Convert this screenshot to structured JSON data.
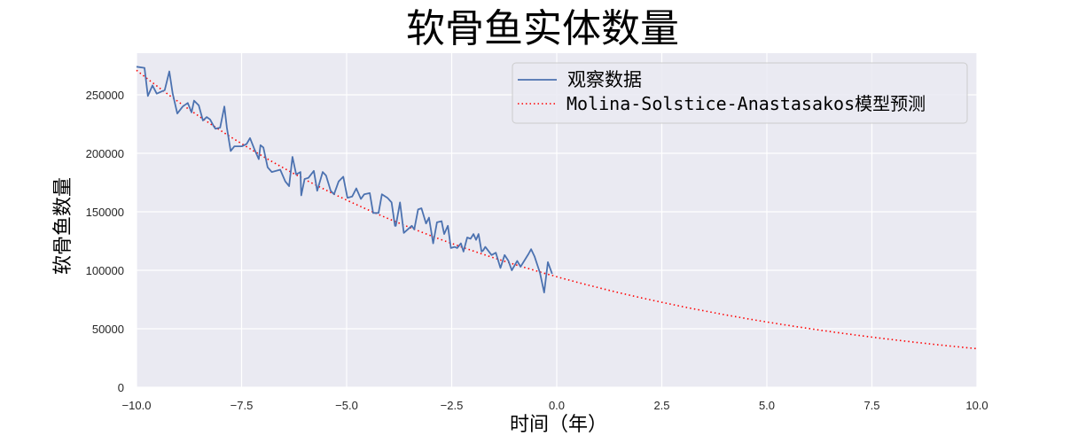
{
  "chart_data": {
    "type": "line",
    "title": "软骨鱼实体数量",
    "xlabel": "时间（年）",
    "ylabel": "软骨鱼数量",
    "xlim": [
      -10.0,
      10.0
    ],
    "ylim": [
      0,
      285000
    ],
    "xticks": [
      "−10.0",
      "−7.5",
      "−5.0",
      "−2.5",
      "0.0",
      "2.5",
      "5.0",
      "7.5",
      "10.0"
    ],
    "xtick_values": [
      -10,
      -7.5,
      -5,
      -2.5,
      0,
      2.5,
      5,
      7.5,
      10
    ],
    "yticks": [
      "0",
      "50000",
      "100000",
      "150000",
      "200000",
      "250000"
    ],
    "ytick_values": [
      0,
      50000,
      100000,
      150000,
      200000,
      250000
    ],
    "grid": true,
    "background": "#eaeaf2",
    "legend_position": "upper right",
    "series": [
      {
        "name": "观察数据",
        "style": "solid",
        "color": "#4c72b0",
        "x": [
          -10.0,
          -9.81,
          -9.73,
          -9.62,
          -9.52,
          -9.33,
          -9.22,
          -9.14,
          -9.03,
          -8.9,
          -8.78,
          -8.69,
          -8.63,
          -8.52,
          -8.42,
          -8.33,
          -8.25,
          -8.16,
          -8.12,
          -8.01,
          -7.91,
          -7.85,
          -7.76,
          -7.67,
          -7.49,
          -7.38,
          -7.3,
          -7.2,
          -7.09,
          -7.05,
          -6.98,
          -6.88,
          -6.78,
          -6.58,
          -6.46,
          -6.37,
          -6.29,
          -6.2,
          -6.1,
          -6.08,
          -6.0,
          -5.91,
          -5.78,
          -5.7,
          -5.57,
          -5.49,
          -5.38,
          -5.3,
          -5.19,
          -5.08,
          -4.98,
          -4.87,
          -4.77,
          -4.66,
          -4.58,
          -4.45,
          -4.37,
          -4.24,
          -4.16,
          -4.03,
          -3.93,
          -3.85,
          -3.83,
          -3.73,
          -3.64,
          -3.45,
          -3.39,
          -3.3,
          -3.22,
          -3.11,
          -3.04,
          -2.94,
          -2.85,
          -2.74,
          -2.68,
          -2.59,
          -2.52,
          -2.43,
          -2.37,
          -2.28,
          -2.22,
          -2.13,
          -2.05,
          -1.98,
          -1.92,
          -1.86,
          -1.79,
          -1.75,
          -1.7,
          -1.55,
          -1.45,
          -1.34,
          -1.24,
          -1.15,
          -1.07,
          -0.94,
          -0.86,
          -0.67,
          -0.61,
          -0.53,
          -0.4,
          -0.3,
          -0.21,
          -0.11
        ],
        "y": [
          274000,
          273000,
          249000,
          258000,
          251000,
          254000,
          270000,
          251000,
          234000,
          240000,
          243000,
          235000,
          245000,
          241000,
          228000,
          231000,
          229000,
          223000,
          221000,
          222000,
          240000,
          222000,
          202000,
          206000,
          206000,
          208000,
          213000,
          204000,
          195000,
          207000,
          205000,
          188000,
          184000,
          186000,
          176000,
          172000,
          197000,
          182000,
          184000,
          164000,
          178000,
          179000,
          185000,
          168000,
          184000,
          181000,
          168000,
          165000,
          176000,
          180000,
          162000,
          163000,
          170000,
          161000,
          165000,
          166000,
          149000,
          149000,
          165000,
          162000,
          158000,
          138000,
          138000,
          158000,
          132000,
          138000,
          135000,
          152000,
          153000,
          140000,
          145000,
          123000,
          141000,
          142000,
          131000,
          138000,
          119000,
          120000,
          119000,
          123000,
          116000,
          128000,
          127000,
          131000,
          126000,
          131000,
          116000,
          117000,
          120000,
          113000,
          115000,
          102000,
          113000,
          108000,
          100000,
          108000,
          103000,
          114000,
          118000,
          112000,
          98000,
          81000,
          107000,
          97000
        ]
      },
      {
        "name": "Molina-Solstice-Anastasakos模型预测",
        "style": "dotted",
        "color": "#ff0000",
        "model": "exponential decay y = 94000 * exp(-0.106 x)",
        "x": [
          -10,
          -7.5,
          -5,
          -2.5,
          0,
          2.5,
          5,
          7.5,
          10
        ],
        "y": [
          271000,
          208000,
          160000,
          123000,
          94500,
          72700,
          55900,
          43000,
          32600
        ]
      }
    ]
  },
  "legend": {
    "items": [
      {
        "label": "观察数据",
        "style": "solid",
        "color": "#4c72b0"
      },
      {
        "label": "Molina-Solstice-Anastasakos模型预测",
        "style": "dotted",
        "color": "#ff0000"
      }
    ]
  },
  "colors": {
    "axes_bg": "#eaeaf2",
    "grid": "#ffffff",
    "observed": "#4c72b0",
    "model": "#ff0000"
  }
}
